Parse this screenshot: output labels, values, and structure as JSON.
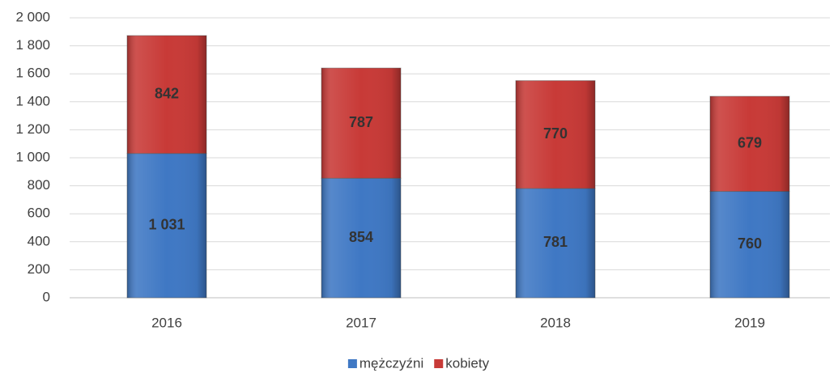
{
  "chart_data": {
    "type": "stacked_bar",
    "categories": [
      "2016",
      "2017",
      "2018",
      "2019"
    ],
    "series": [
      {
        "name": "mężczyźni",
        "color": "#3f78c4",
        "values": [
          1031,
          854,
          781,
          760
        ],
        "value_labels": [
          "1 031",
          "854",
          "781",
          "760"
        ]
      },
      {
        "name": "kobiety",
        "color": "#c83a37",
        "values": [
          842,
          787,
          770,
          679
        ]
      }
    ],
    "ylim": [
      0,
      2000
    ],
    "yticks": [
      0,
      200,
      400,
      600,
      800,
      {
        "value": 1000,
        "label": "1 000"
      },
      {
        "value": 1200,
        "label": "1 200"
      },
      {
        "value": 1400,
        "label": "1 400"
      },
      {
        "value": 1600,
        "label": "1 600"
      },
      {
        "value": 1800,
        "label": "1 800"
      },
      {
        "value": 2000,
        "label": "2 000"
      }
    ],
    "grid": true,
    "legend": "bottom"
  }
}
